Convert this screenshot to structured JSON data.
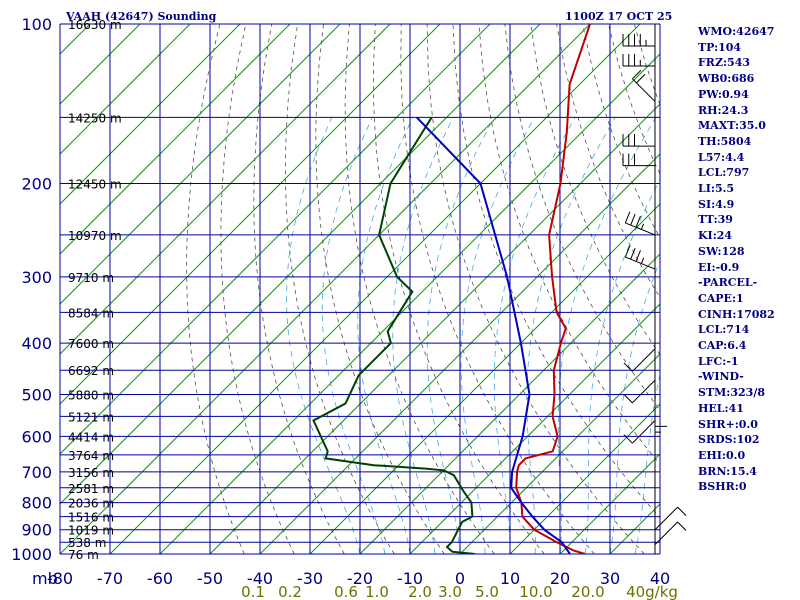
{
  "header": {
    "title": "VAAH (42647) Sounding",
    "timestamp": "1100Z 17 OCT 25"
  },
  "indices": [
    "WMO:42647",
    "TP:104",
    "FRZ:543",
    "WB0:686",
    "PW:0.94",
    "RH:24.3",
    "MAXT:35.0",
    "TH:5804",
    "L57:4.4",
    "LCL:797",
    "LI:5.5",
    "SI:4.9",
    "TT:39",
    "KI:24",
    "SW:128",
    "EI:-0.9",
    "-PARCEL-",
    "CAPE:1",
    "CINH:17082",
    "LCL:714",
    "CAP:6.4",
    "LFC:-1",
    "-WIND-",
    "STM:323/8",
    "HEL:41",
    "SHR+:0.0",
    "SRDS:102",
    "EHI:0.0",
    "BRN:15.4",
    "BSHR:0"
  ],
  "colors": {
    "grid": "#0000a0",
    "isotherm": "#00a000",
    "dry_adiabat": "#505050",
    "moist_adiabat": "#4aa8e0",
    "temperature": "#c00000",
    "dewpoint": "#004000",
    "parcel": "#0000c0",
    "axis_text": "#000080",
    "mixing_text": "#707000"
  },
  "chart_data": {
    "type": "line",
    "title": "VAAH (42647) Sounding",
    "x_axis": {
      "unit_label": "mb",
      "ticks": [
        -80,
        -70,
        -60,
        -50,
        -40,
        -30,
        -20,
        -10,
        0,
        10,
        20,
        30,
        40
      ]
    },
    "y_axis": {
      "scale": "log",
      "ticks": [
        100,
        200,
        300,
        400,
        500,
        600,
        700,
        800,
        900,
        1000
      ],
      "ylim": [
        100,
        1000
      ]
    },
    "mixing_ratio_labels": [
      "0.1",
      "0.2",
      "0.6",
      "1.0",
      "2.0",
      "3.0",
      "5.0",
      "10.0",
      "20.0",
      "40g/kg"
    ],
    "heights": [
      {
        "p": 100,
        "label": "16630 m"
      },
      {
        "p": 150,
        "label": "14250 m"
      },
      {
        "p": 200,
        "label": "12450 m"
      },
      {
        "p": 250,
        "label": "10970 m"
      },
      {
        "p": 300,
        "label": "9710 m"
      },
      {
        "p": 350,
        "label": "8584 m"
      },
      {
        "p": 400,
        "label": "7600 m"
      },
      {
        "p": 450,
        "label": "6692 m"
      },
      {
        "p": 500,
        "label": "5880 m"
      },
      {
        "p": 550,
        "label": "5121 m"
      },
      {
        "p": 600,
        "label": "4414 m"
      },
      {
        "p": 650,
        "label": "3764 m"
      },
      {
        "p": 700,
        "label": "3156 m"
      },
      {
        "p": 750,
        "label": "2581 m"
      },
      {
        "p": 800,
        "label": "2036 m"
      },
      {
        "p": 850,
        "label": "1516 m"
      },
      {
        "p": 900,
        "label": "1019 m"
      },
      {
        "p": 950,
        "label": "538 m"
      },
      {
        "p": 1000,
        "label": "76 m"
      }
    ],
    "series": [
      {
        "name": "Temperature",
        "points": [
          [
            100,
            -80
          ],
          [
            130,
            -72
          ],
          [
            160,
            -63
          ],
          [
            200,
            -54
          ],
          [
            250,
            -46
          ],
          [
            300,
            -37
          ],
          [
            350,
            -29
          ],
          [
            375,
            -24
          ],
          [
            400,
            -22
          ],
          [
            450,
            -18
          ],
          [
            500,
            -13
          ],
          [
            550,
            -9
          ],
          [
            600,
            -4
          ],
          [
            640,
            -2
          ],
          [
            660,
            -6
          ],
          [
            680,
            -6
          ],
          [
            700,
            -5
          ],
          [
            750,
            -2
          ],
          [
            800,
            2
          ],
          [
            850,
            5
          ],
          [
            900,
            10
          ],
          [
            950,
            17
          ],
          [
            985,
            22
          ],
          [
            1000,
            25
          ]
        ]
      },
      {
        "name": "Dewpoint",
        "points": [
          [
            150,
            -93
          ],
          [
            200,
            -88
          ],
          [
            250,
            -80
          ],
          [
            300,
            -68
          ],
          [
            320,
            -62
          ],
          [
            380,
            -59
          ],
          [
            400,
            -56
          ],
          [
            460,
            -56
          ],
          [
            520,
            -53
          ],
          [
            560,
            -56
          ],
          [
            640,
            -47
          ],
          [
            660,
            -46
          ],
          [
            680,
            -35
          ],
          [
            690,
            -24
          ],
          [
            695,
            -20
          ],
          [
            710,
            -17
          ],
          [
            760,
            -12
          ],
          [
            800,
            -8
          ],
          [
            850,
            -5
          ],
          [
            870,
            -6
          ],
          [
            950,
            -4
          ],
          [
            970,
            -4
          ],
          [
            990,
            -2
          ],
          [
            1000,
            3
          ]
        ]
      },
      {
        "name": "Parcel",
        "points": [
          [
            150,
            -96
          ],
          [
            200,
            -70
          ],
          [
            300,
            -46
          ],
          [
            400,
            -30
          ],
          [
            500,
            -18
          ],
          [
            600,
            -11
          ],
          [
            700,
            -6
          ],
          [
            750,
            -3
          ],
          [
            800,
            2
          ],
          [
            850,
            7
          ],
          [
            900,
            12
          ],
          [
            950,
            18
          ],
          [
            1000,
            22
          ]
        ]
      }
    ],
    "wind_barbs": [
      {
        "p": 110,
        "dir": "W",
        "speed": 35
      },
      {
        "p": 120,
        "dir": "W",
        "speed": 25
      },
      {
        "p": 140,
        "dir": "NW",
        "speed": 20
      },
      {
        "p": 170,
        "dir": "W",
        "speed": 30
      },
      {
        "p": 185,
        "dir": "W",
        "speed": 30
      },
      {
        "p": 250,
        "dir": "WNW",
        "speed": 25
      },
      {
        "p": 290,
        "dir": "WNW",
        "speed": 25
      },
      {
        "p": 410,
        "dir": "SW",
        "speed": 10
      },
      {
        "p": 470,
        "dir": "SW",
        "speed": 10
      },
      {
        "p": 560,
        "dir": "SW",
        "speed": 10
      },
      {
        "p": 660,
        "dir": "N",
        "speed": 5
      },
      {
        "p": 900,
        "dir": "NE",
        "speed": 10
      },
      {
        "p": 960,
        "dir": "NE",
        "speed": 10
      }
    ]
  }
}
